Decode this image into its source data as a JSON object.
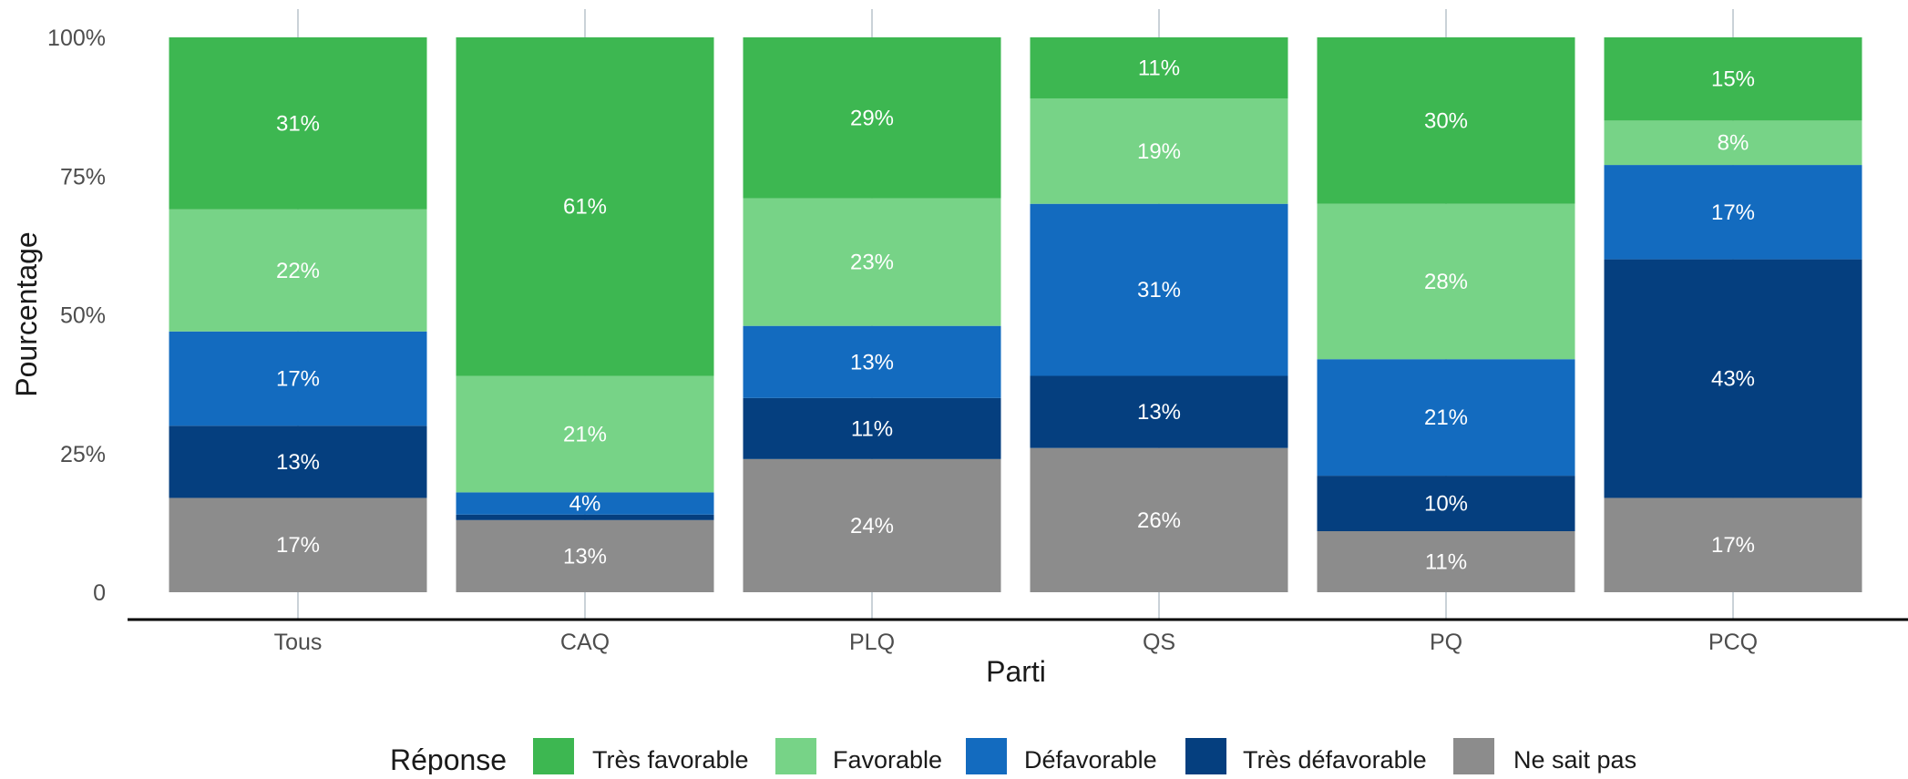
{
  "chart_data": {
    "type": "bar",
    "stacked": true,
    "xlabel": "Parti",
    "ylabel": "Pourcentage",
    "ylim": [
      0,
      100
    ],
    "y_ticks": [
      {
        "value": 0,
        "label": "0"
      },
      {
        "value": 25,
        "label": "25%"
      },
      {
        "value": 50,
        "label": "50%"
      },
      {
        "value": 75,
        "label": "75%"
      },
      {
        "value": 100,
        "label": "100%"
      }
    ],
    "categories": [
      "Tous",
      "CAQ",
      "PLQ",
      "QS",
      "PQ",
      "PCQ"
    ],
    "series": [
      {
        "name": "Ne sait pas",
        "color": "#8c8c8c",
        "values": [
          17,
          13,
          24,
          26,
          11,
          17
        ]
      },
      {
        "name": "Très défavorable",
        "color": "#053f7f",
        "values": [
          13,
          1,
          11,
          13,
          10,
          43
        ]
      },
      {
        "name": "Défavorable",
        "color": "#136bbf",
        "values": [
          17,
          4,
          13,
          31,
          21,
          17
        ]
      },
      {
        "name": "Favorable",
        "color": "#77d387",
        "values": [
          22,
          21,
          23,
          19,
          28,
          8
        ]
      },
      {
        "name": "Très favorable",
        "color": "#3db751",
        "values": [
          31,
          61,
          29,
          11,
          30,
          15
        ]
      }
    ],
    "labels": [
      [
        "17%",
        "13%",
        "17%",
        "22%",
        "31%"
      ],
      [
        "13%",
        "",
        "4%",
        "21%",
        "61%"
      ],
      [
        "24%",
        "11%",
        "13%",
        "23%",
        "29%"
      ],
      [
        "26%",
        "13%",
        "31%",
        "19%",
        "11%"
      ],
      [
        "11%",
        "10%",
        "21%",
        "28%",
        "30%"
      ],
      [
        "17%",
        "43%",
        "17%",
        "8%",
        "15%"
      ]
    ],
    "legend": {
      "title": "Réponse",
      "position": "bottom",
      "order": [
        "Très favorable",
        "Favorable",
        "Défavorable",
        "Très défavorable",
        "Ne sait pas"
      ]
    },
    "grid": "vertical-major"
  }
}
